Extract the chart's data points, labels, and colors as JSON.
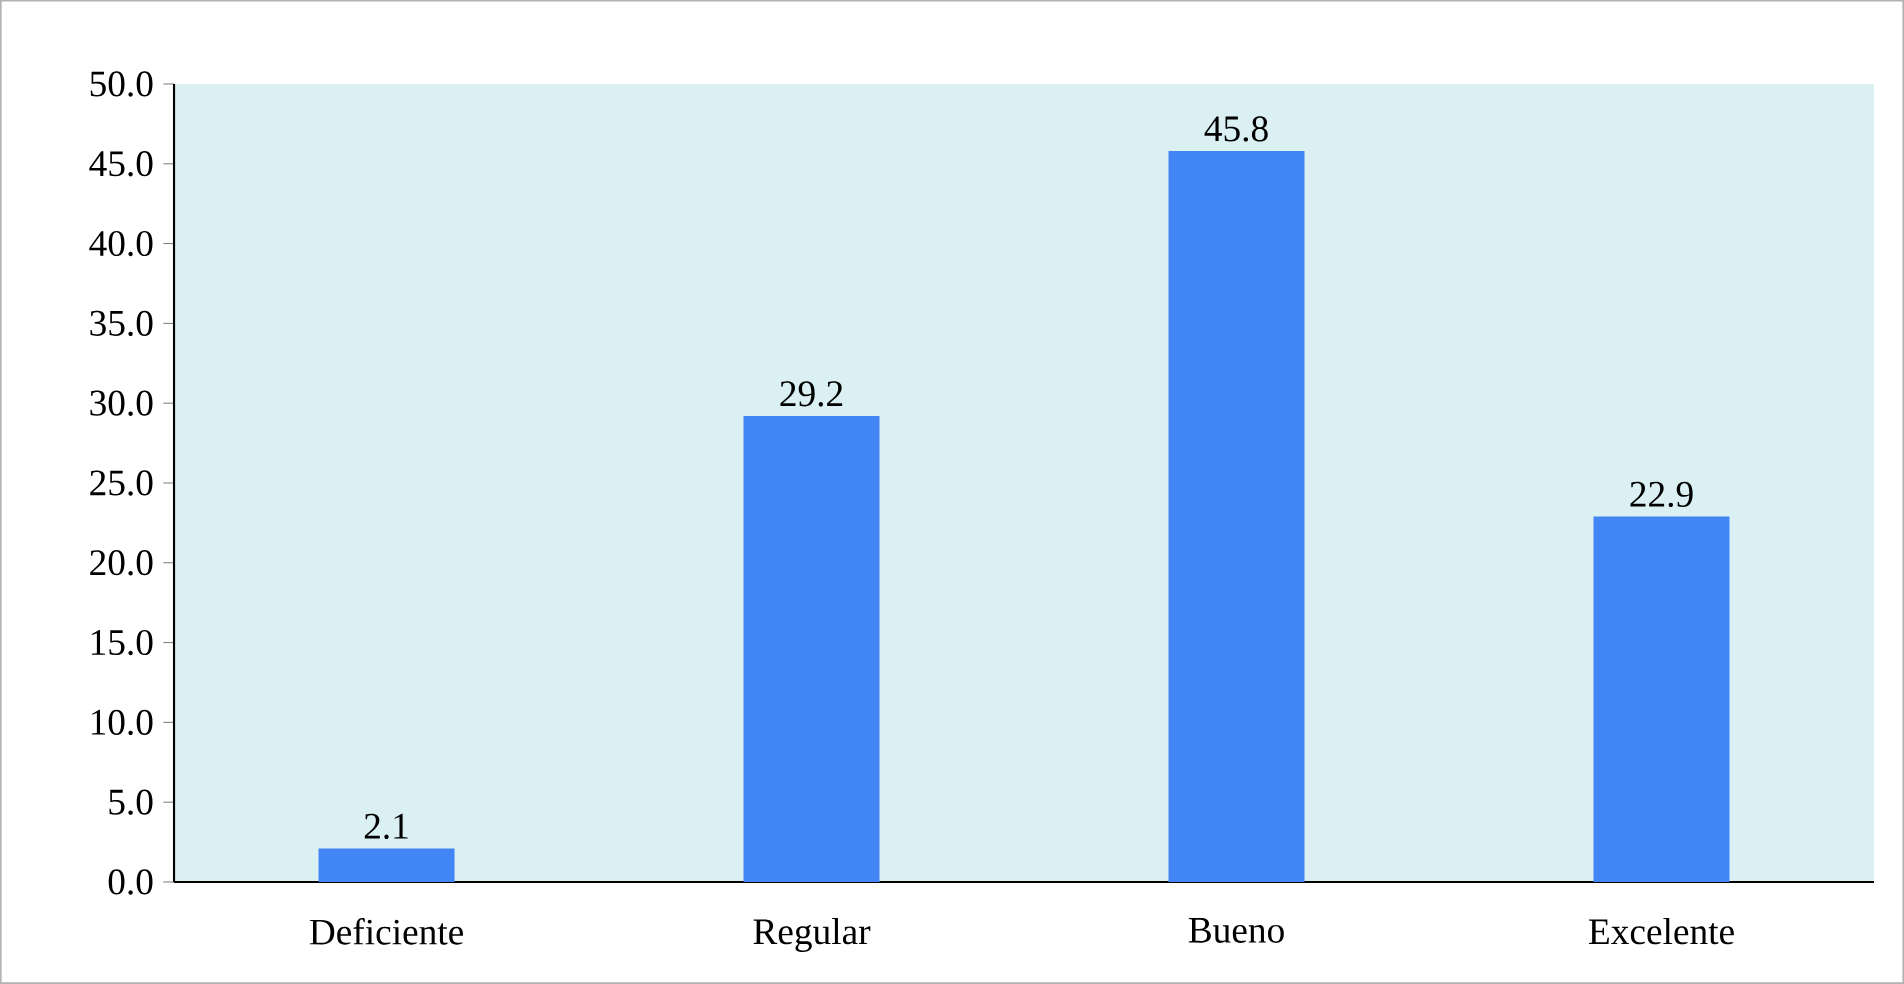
{
  "chart_data": {
    "type": "bar",
    "categories": [
      "Deficiente",
      "Regular",
      "Bueno",
      "Excelente"
    ],
    "values": [
      2.1,
      29.2,
      45.8,
      22.9
    ],
    "color": "#4285f4",
    "ylim": [
      0,
      50
    ],
    "yticks": [
      {
        "value": 0,
        "label": "0.0"
      },
      {
        "value": 5,
        "label": "5.0"
      },
      {
        "value": 10,
        "label": "10.0"
      },
      {
        "value": 15,
        "label": "15.0"
      },
      {
        "value": 20,
        "label": "20.0"
      },
      {
        "value": 25,
        "label": "25.0"
      },
      {
        "value": 30,
        "label": "30.0"
      },
      {
        "value": 35,
        "label": "35.0"
      },
      {
        "value": 40,
        "label": "40.0"
      },
      {
        "value": 45,
        "label": "45.0"
      },
      {
        "value": 50,
        "label": "50.0"
      }
    ],
    "data_labels": true,
    "grid": false
  }
}
